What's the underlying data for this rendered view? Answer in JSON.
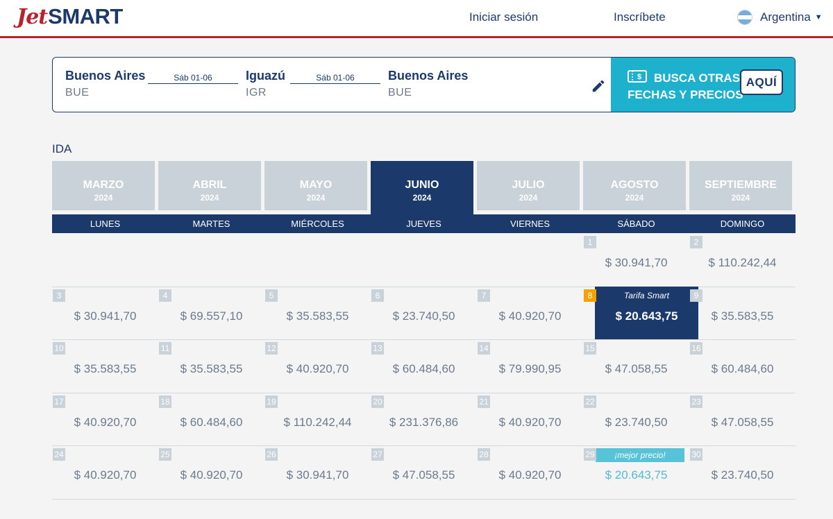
{
  "brand": {
    "logo_part1": "Jet",
    "logo_part2": "SMART"
  },
  "header": {
    "login": "Iniciar sesión",
    "signup": "Inscríbete",
    "country": "Argentina"
  },
  "search": {
    "origin": {
      "name": "Buenos Aires",
      "code": "BUE"
    },
    "date1": "Sáb 01-06",
    "destination": {
      "name": "Iguazú",
      "code": "IGR"
    },
    "date2": "Sáb 01-06",
    "return": {
      "name": "Buenos Aires",
      "code": "BUE"
    },
    "promo_text": "BUSCA OTRAS FECHAS Y PRECIOS",
    "promo_button": "AQUÍ"
  },
  "section_label": "IDA",
  "months": [
    {
      "name": "MARZO",
      "year": "2024",
      "active": false
    },
    {
      "name": "ABRIL",
      "year": "2024",
      "active": false
    },
    {
      "name": "MAYO",
      "year": "2024",
      "active": false
    },
    {
      "name": "JUNIO",
      "year": "2024",
      "active": true
    },
    {
      "name": "JULIO",
      "year": "2024",
      "active": false
    },
    {
      "name": "AGOSTO",
      "year": "2024",
      "active": false
    },
    {
      "name": "SEPTIEMBRE",
      "year": "2024",
      "active": false
    }
  ],
  "weekdays": [
    "LUNES",
    "MARTES",
    "MIÉRCOLES",
    "JUEVES",
    "VIERNES",
    "SÁBADO",
    "DOMINGO"
  ],
  "smart_tag": "Tarifa Smart",
  "best_tag": "¡mejor precio!",
  "days": [
    {
      "day": "1",
      "price": "$ 30.941,70",
      "col": 5,
      "row": 0
    },
    {
      "day": "2",
      "price": "$ 110.242,44",
      "col": 6,
      "row": 0
    },
    {
      "day": "3",
      "price": "$ 30.941,70",
      "col": 0,
      "row": 1
    },
    {
      "day": "4",
      "price": "$ 69.557,10",
      "col": 1,
      "row": 1
    },
    {
      "day": "5",
      "price": "$ 35.583,55",
      "col": 2,
      "row": 1
    },
    {
      "day": "6",
      "price": "$ 23.740,50",
      "col": 3,
      "row": 1
    },
    {
      "day": "7",
      "price": "$ 40.920,70",
      "col": 4,
      "row": 1
    },
    {
      "day": "8",
      "price": "$ 20.643,75",
      "col": 5,
      "row": 1,
      "special": "smart"
    },
    {
      "day": "9",
      "price": "$ 35.583,55",
      "col": 6,
      "row": 1
    },
    {
      "day": "10",
      "price": "$ 35.583,55",
      "col": 0,
      "row": 2
    },
    {
      "day": "11",
      "price": "$ 35.583,55",
      "col": 1,
      "row": 2
    },
    {
      "day": "12",
      "price": "$ 40.920,70",
      "col": 2,
      "row": 2
    },
    {
      "day": "13",
      "price": "$ 60.484,60",
      "col": 3,
      "row": 2
    },
    {
      "day": "14",
      "price": "$ 79.990,95",
      "col": 4,
      "row": 2
    },
    {
      "day": "15",
      "price": "$ 47.058,55",
      "col": 5,
      "row": 2
    },
    {
      "day": "16",
      "price": "$ 60.484,60",
      "col": 6,
      "row": 2
    },
    {
      "day": "17",
      "price": "$ 40.920,70",
      "col": 0,
      "row": 3
    },
    {
      "day": "18",
      "price": "$ 60.484,60",
      "col": 1,
      "row": 3
    },
    {
      "day": "19",
      "price": "$ 110.242,44",
      "col": 2,
      "row": 3
    },
    {
      "day": "20",
      "price": "$ 231.376,86",
      "col": 3,
      "row": 3
    },
    {
      "day": "21",
      "price": "$ 40.920,70",
      "col": 4,
      "row": 3
    },
    {
      "day": "22",
      "price": "$ 23.740,50",
      "col": 5,
      "row": 3
    },
    {
      "day": "23",
      "price": "$ 47.058,55",
      "col": 6,
      "row": 3
    },
    {
      "day": "24",
      "price": "$ 40.920,70",
      "col": 0,
      "row": 4
    },
    {
      "day": "25",
      "price": "$ 40.920,70",
      "col": 1,
      "row": 4
    },
    {
      "day": "26",
      "price": "$ 30.941,70",
      "col": 2,
      "row": 4
    },
    {
      "day": "27",
      "price": "$ 47.058,55",
      "col": 3,
      "row": 4
    },
    {
      "day": "28",
      "price": "$ 40.920,70",
      "col": 4,
      "row": 4
    },
    {
      "day": "29",
      "price": "$ 20.643,75",
      "col": 5,
      "row": 4,
      "special": "best"
    },
    {
      "day": "30",
      "price": "$ 23.740,50",
      "col": 6,
      "row": 4
    }
  ],
  "colors": {
    "navy": "#1b3a6b",
    "red": "#b5232f",
    "cyan": "#1eb1ce",
    "orange": "#f5a100",
    "gray": "#c9d1d9"
  }
}
